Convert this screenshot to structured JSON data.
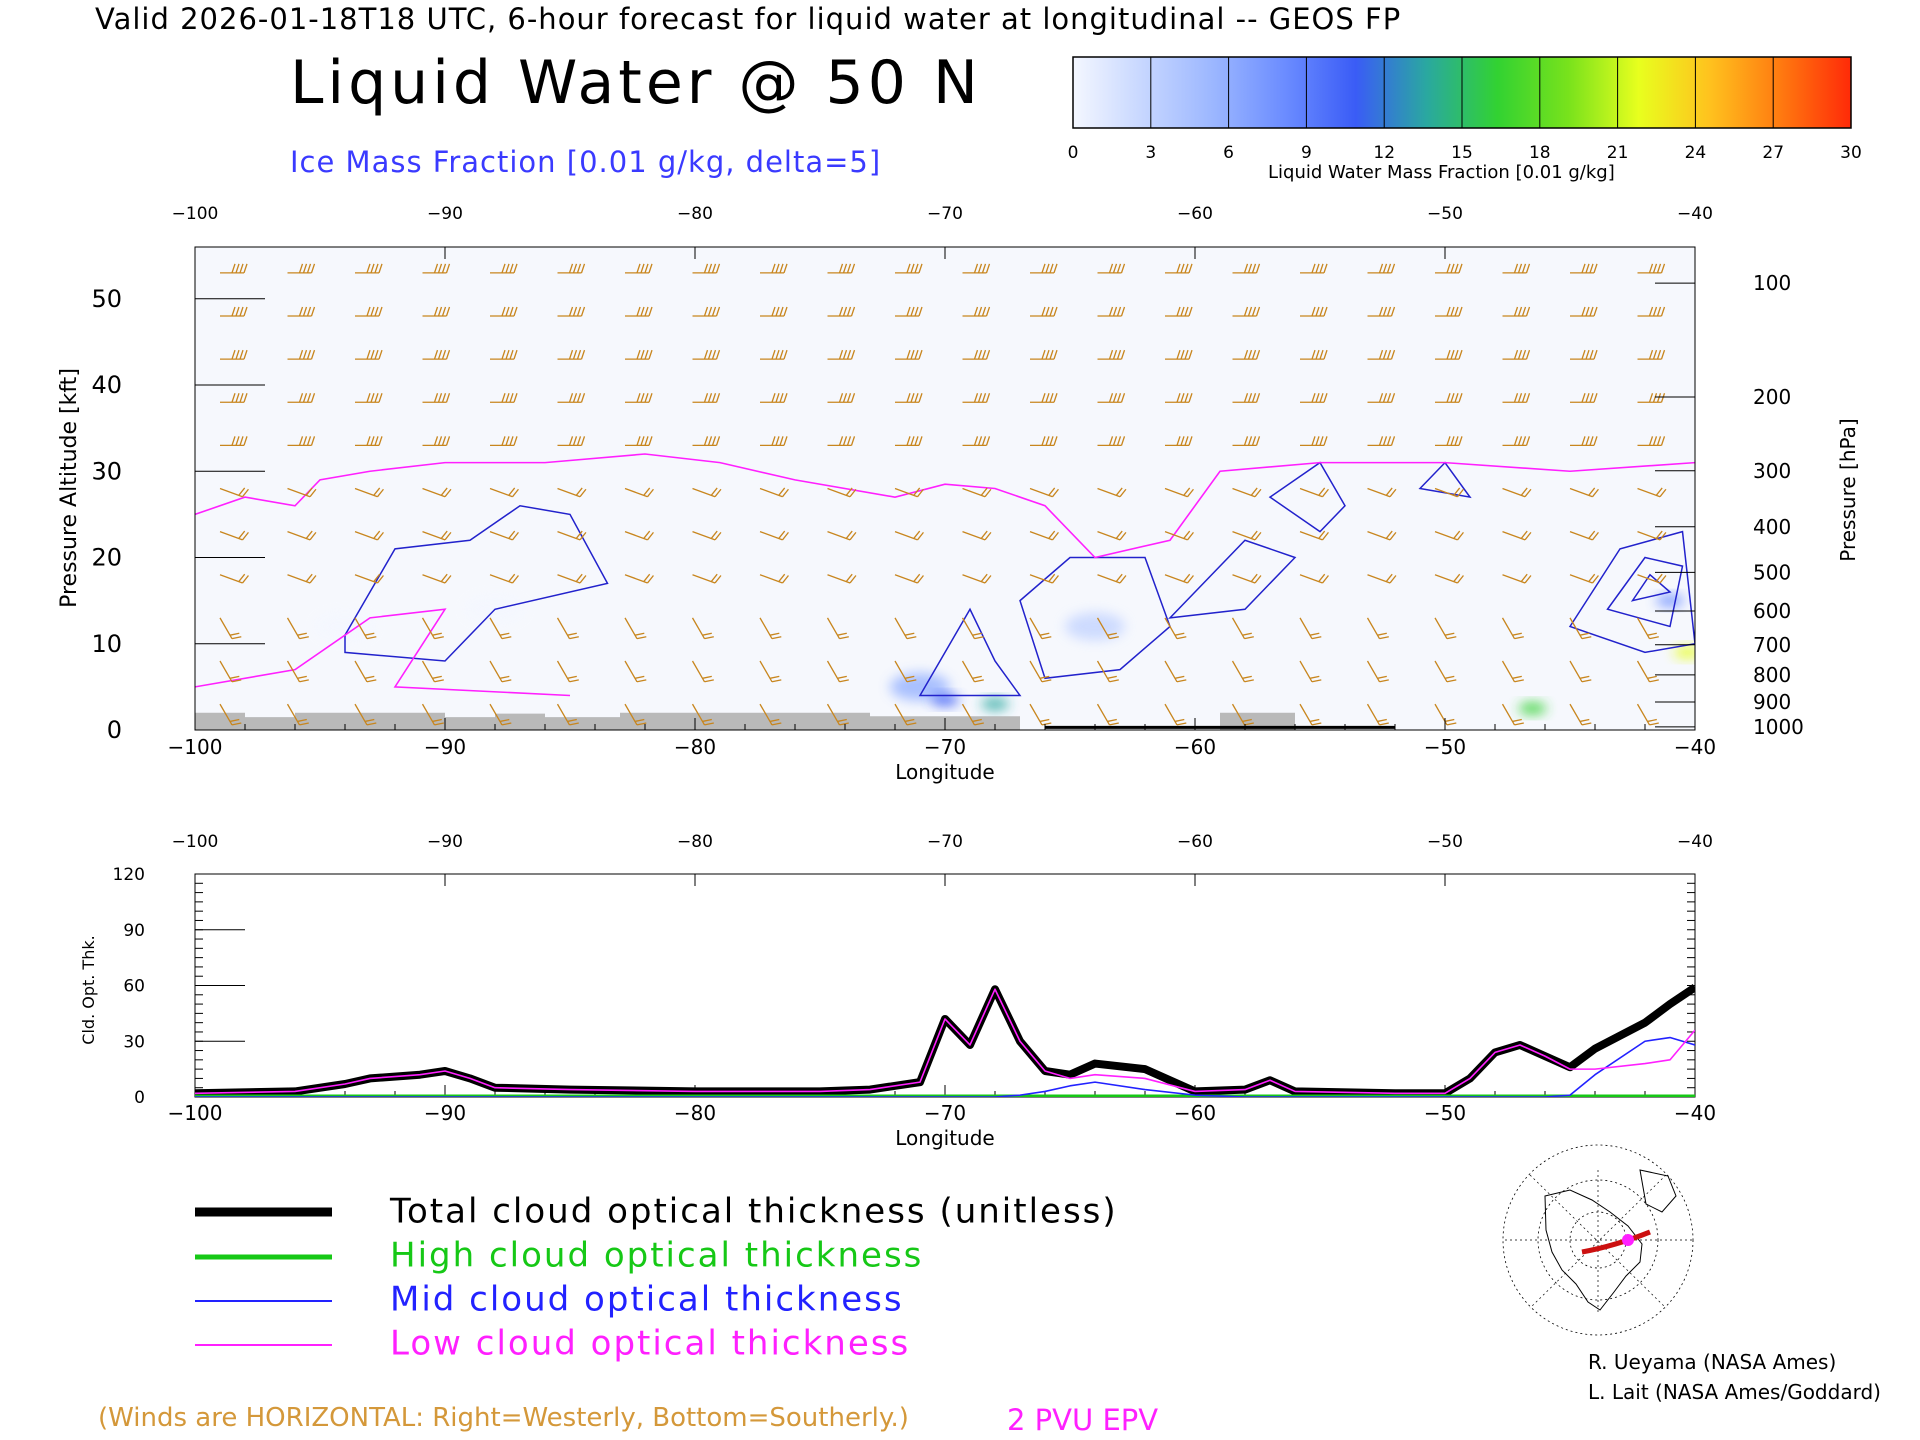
{
  "header": {
    "valid_line": "Valid 2026-01-18T18 UTC, 6-hour forecast for liquid water at longitudinal -- GEOS FP",
    "main_title": "Liquid Water @ 50 N",
    "ice_label": "Ice Mass Fraction [0.01 g/kg, delta=5]"
  },
  "colorbar": {
    "title": "Liquid Water Mass Fraction [0.01 g/kg]",
    "ticks": [
      "0",
      "3",
      "6",
      "9",
      "12",
      "15",
      "18",
      "21",
      "24",
      "27",
      "30"
    ],
    "colors": [
      "#f4f7ff",
      "#c6d6ff",
      "#9bb6ff",
      "#6b8cff",
      "#3a5cf6",
      "#2aa8a0",
      "#32d232",
      "#78e21c",
      "#e8ff1e",
      "#ffc21e",
      "#ff7a10",
      "#ff2a08"
    ]
  },
  "chart_data": [
    {
      "type": "heatmap",
      "title": "Liquid Water @ 50 N",
      "xlabel": "Longitude",
      "ylabel": "Pressure Altitude [kft]",
      "y2label": "Pressure [hPa]",
      "xlim": [
        -100,
        -40
      ],
      "ylim": [
        0,
        56
      ],
      "x_ticks": [
        "-100",
        "-90",
        "-80",
        "-70",
        "-60",
        "-50",
        "-40"
      ],
      "y_ticks": [
        "0",
        "10",
        "20",
        "30",
        "40",
        "50"
      ],
      "pressure_ticks": [
        "100",
        "200",
        "300",
        "400",
        "500",
        "600",
        "700",
        "800",
        "900",
        "1000"
      ],
      "pressure_levels": [
        100,
        200,
        300,
        400,
        500,
        600,
        700,
        800,
        900,
        1000
      ],
      "liquid_water_blobs": [
        {
          "lon": -94,
          "alt": 12,
          "value": 1
        },
        {
          "lon": -88,
          "alt": 14,
          "value": 1
        },
        {
          "lon": -71,
          "alt": 5,
          "value": 5
        },
        {
          "lon": -70,
          "alt": 3.5,
          "value": 10
        },
        {
          "lon": -68,
          "alt": 3,
          "value": 14
        },
        {
          "lon": -64,
          "alt": 12,
          "value": 2
        },
        {
          "lon": -46.5,
          "alt": 2.5,
          "value": 15
        },
        {
          "lon": -41,
          "alt": 15,
          "value": 9
        },
        {
          "lon": -40.3,
          "alt": 9,
          "value": 22
        }
      ],
      "tropopause_2pvu": [
        [
          -100,
          25
        ],
        [
          -98,
          27
        ],
        [
          -96,
          26
        ],
        [
          -95,
          29
        ],
        [
          -93,
          30
        ],
        [
          -90,
          31
        ],
        [
          -86,
          31
        ],
        [
          -82,
          32
        ],
        [
          -79,
          31
        ],
        [
          -76,
          29
        ],
        [
          -72,
          27
        ],
        [
          -70,
          28.5
        ],
        [
          -68,
          28
        ],
        [
          -66,
          26
        ],
        [
          -64,
          20
        ],
        [
          -61,
          22
        ],
        [
          -59,
          30
        ],
        [
          -55,
          31
        ],
        [
          -50,
          31
        ],
        [
          -45,
          30
        ],
        [
          -40,
          31
        ]
      ]
    },
    {
      "type": "line",
      "xlabel": "Longitude",
      "ylabel": "Cld. Opt. Thk.",
      "xlim": [
        -100,
        -40
      ],
      "ylim": [
        0,
        120
      ],
      "x_ticks": [
        "-100",
        "-90",
        "-80",
        "-70",
        "-60",
        "-50",
        "-40"
      ],
      "y_ticks": [
        "0",
        "30",
        "60",
        "90",
        "120"
      ],
      "x": [
        -100,
        -96,
        -94,
        -93,
        -91,
        -90,
        -89,
        -88,
        -85,
        -80,
        -75,
        -73,
        -71,
        -70,
        -69,
        -68,
        -67,
        -66,
        -65,
        -64,
        -62,
        -60,
        -58,
        -57,
        -56,
        -52,
        -50,
        -49,
        -48,
        -47,
        -46,
        -45,
        -44,
        -42,
        -41,
        -40
      ],
      "series": [
        {
          "name": "Total cloud optical thickness (unitless)",
          "color": "#000000",
          "values": [
            2,
            3,
            7,
            10,
            12,
            14,
            10,
            5,
            4,
            3,
            3,
            4,
            8,
            42,
            28,
            58,
            30,
            14,
            12,
            18,
            15,
            3,
            4,
            9,
            3,
            2,
            2,
            10,
            24,
            28,
            22,
            16,
            26,
            40,
            50,
            59
          ]
        },
        {
          "name": "High cloud optical thickness",
          "color": "#16c816",
          "values": [
            0,
            0,
            0,
            0,
            0,
            0,
            0,
            0,
            0,
            0,
            0,
            0,
            0,
            0,
            0,
            0,
            0,
            0,
            0,
            0,
            0,
            0,
            0,
            0,
            0,
            0,
            0,
            0,
            0,
            0,
            0,
            0,
            0,
            0,
            0,
            0
          ]
        },
        {
          "name": "Mid cloud optical thickness",
          "color": "#2222ff",
          "values": [
            0,
            0,
            0,
            0,
            0,
            0,
            0,
            0,
            0,
            0,
            0,
            0,
            0,
            0,
            0,
            0,
            1,
            3,
            6,
            8,
            4,
            1,
            0,
            0,
            0,
            0,
            0,
            0,
            0,
            0,
            0,
            1,
            12,
            30,
            32,
            28
          ]
        },
        {
          "name": "Low cloud optical thickness",
          "color": "#ff20ff",
          "values": [
            2,
            3,
            7,
            10,
            12,
            14,
            10,
            5,
            4,
            3,
            3,
            4,
            8,
            42,
            28,
            58,
            30,
            14,
            10,
            12,
            10,
            3,
            4,
            9,
            3,
            2,
            2,
            10,
            24,
            28,
            22,
            15,
            15,
            18,
            20,
            36
          ]
        }
      ]
    }
  ],
  "legend": {
    "total_label": "Total cloud optical thickness (unitless)",
    "high_label": "High cloud optical thickness",
    "mid_label": "Mid cloud optical thickness",
    "low_label": "Low cloud optical thickness"
  },
  "notes": {
    "winds": "(Winds are HORIZONTAL: Right=Westerly, Bottom=Southerly.)",
    "pvu": "2 PVU EPV",
    "credit_1": "R. Ueyama (NASA Ames)",
    "credit_2": "L. Lait (NASA Ames/Goddard)"
  },
  "colors": {
    "wind_barb": "#c8861e",
    "ice_contour": "#2222cc",
    "epv": "#ff20ff",
    "terrain": "#b9b9b9"
  }
}
